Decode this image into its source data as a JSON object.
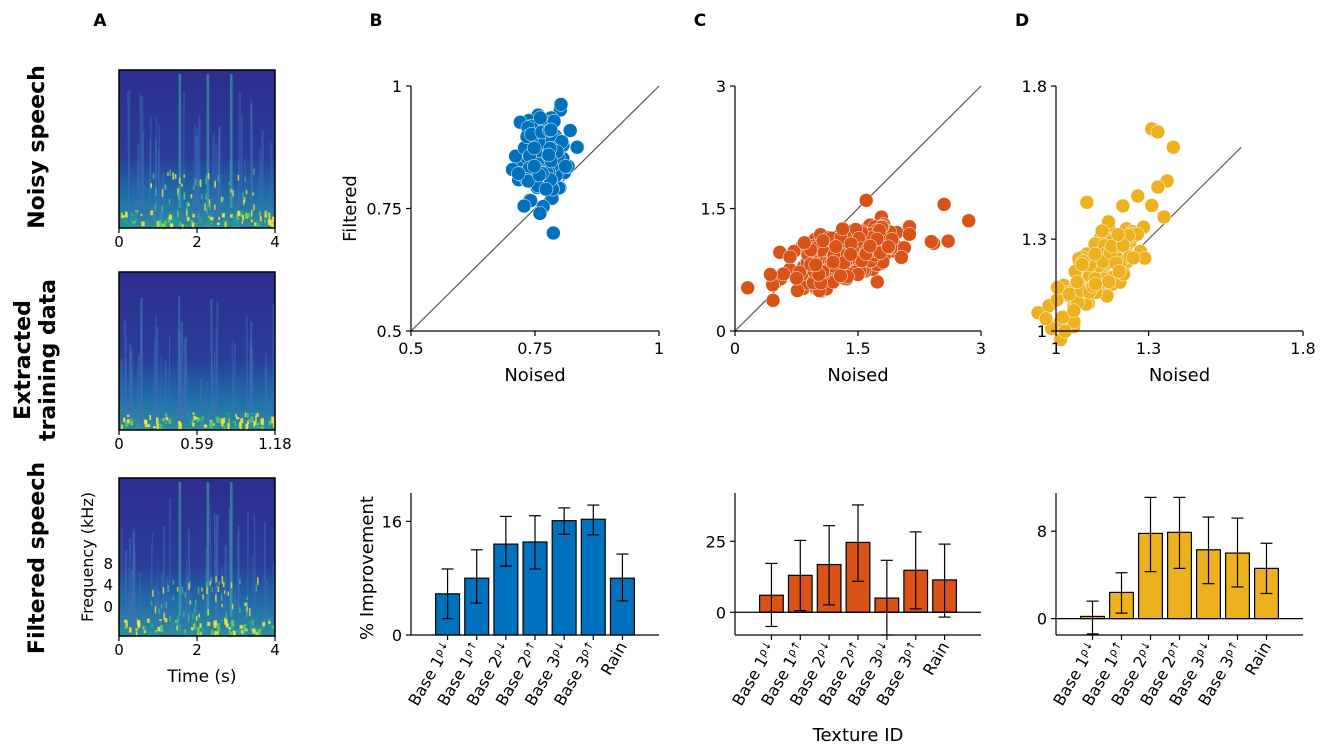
{
  "panel_labels": [
    "A",
    "B",
    "C",
    "D"
  ],
  "row_labels": {
    "noisy": "Noisy speech",
    "extracted_1": "Extracted",
    "extracted_2": "training data",
    "filtered": "Filtered speech"
  },
  "spectrograms": [
    {
      "id": "noisy",
      "xticks": [
        "0",
        "2",
        "4"
      ],
      "yticks": [],
      "xlabel": "",
      "ylabel": ""
    },
    {
      "id": "extracted",
      "xticks": [
        "0",
        "0.59",
        "1.18"
      ],
      "yticks": [],
      "xlabel": "",
      "ylabel": ""
    },
    {
      "id": "filtered",
      "xticks": [
        "0",
        "2",
        "4"
      ],
      "yticks": [
        "8",
        "4",
        "0"
      ],
      "xlabel": "Time (s)",
      "ylabel": "Frequency (kHz)"
    }
  ],
  "colors": {
    "blue": "#0072bd",
    "orange": "#d95319",
    "yellow": "#edb120",
    "spec_bg": "#2c2e8e",
    "axis": "#000000",
    "diag": "#555555"
  },
  "chart_data": [
    {
      "panel": "B",
      "type": "scatter",
      "xlabel": "Noised",
      "ylabel": "Filtered",
      "xlim": [
        0.5,
        1
      ],
      "ylim": [
        0.5,
        1
      ],
      "xticks": [
        "0.5",
        "0.75",
        "1"
      ],
      "yticks": [
        "0.5",
        "0.75",
        "1"
      ],
      "diagonal": true,
      "cloud": {
        "cx": 0.765,
        "cy": 0.86,
        "sx": 0.022,
        "sy": 0.04,
        "n": 170,
        "rho": 0.15
      },
      "outliers": [
        [
          0.728,
          0.755
        ],
        [
          0.76,
          0.74
        ],
        [
          0.787,
          0.7
        ],
        [
          0.835,
          0.875
        ]
      ]
    },
    {
      "panel": "C",
      "type": "scatter",
      "xlabel": "Noised",
      "ylabel": "",
      "xlim": [
        0,
        3
      ],
      "ylim": [
        0,
        3
      ],
      "xticks": [
        "0",
        "1.5",
        "3"
      ],
      "yticks": [
        "0",
        "1.5",
        "3"
      ],
      "diagonal": true,
      "cloud": {
        "cx": 1.35,
        "cy": 0.92,
        "sx": 0.35,
        "sy": 0.2,
        "n": 300,
        "rho": 0.55
      },
      "outliers": [
        [
          2.55,
          1.55
        ],
        [
          2.85,
          1.35
        ],
        [
          1.6,
          1.6
        ],
        [
          2.6,
          1.1
        ]
      ]
    },
    {
      "panel": "D",
      "type": "scatter",
      "xlabel": "Noised",
      "ylabel": "",
      "xlim": [
        1,
        1.8
      ],
      "ylim": [
        1,
        1.8
      ],
      "xticks": [
        "1",
        "1.3",
        "1.8"
      ],
      "yticks": [
        "1",
        "1.3",
        "1.8"
      ],
      "diagonal": true,
      "diag_end": 1.6,
      "cloud": {
        "cx": 1.14,
        "cy": 1.21,
        "sx": 0.07,
        "sy": 0.09,
        "n": 190,
        "rho": 0.8
      },
      "outliers": [
        [
          1.31,
          1.66
        ],
        [
          1.33,
          1.65
        ],
        [
          1.38,
          1.6
        ],
        [
          1.36,
          1.49
        ],
        [
          1.33,
          1.47
        ],
        [
          1.31,
          1.41
        ],
        [
          1.1,
          1.42
        ]
      ]
    },
    {
      "panel": "B",
      "type": "bar",
      "color": "blue",
      "ylabel": "% Improvement",
      "ylim": [
        0,
        20
      ],
      "yticks": [
        0,
        16
      ],
      "categories": [
        "Base 1",
        "Base 1",
        "Base 2",
        "Base 2",
        "Base 3",
        "Base 3",
        "Rain"
      ],
      "rho_marks": [
        "ρ↓",
        "ρ↑",
        "ρ↓",
        "ρ↑",
        "ρ↓",
        "ρ↑",
        ""
      ],
      "values": [
        5.8,
        8.0,
        12.8,
        13.1,
        16.1,
        16.3,
        8.0
      ],
      "err_low": [
        2.3,
        4.5,
        9.7,
        9.3,
        14.2,
        14.1,
        4.8
      ],
      "err_high": [
        9.3,
        12.0,
        16.7,
        16.8,
        17.9,
        18.3,
        11.4
      ],
      "xlabel": ""
    },
    {
      "panel": "C",
      "type": "bar",
      "color": "orange",
      "ylabel": "",
      "ylim": [
        -8,
        42
      ],
      "yticks": [
        0,
        25
      ],
      "categories": [
        "Base 1",
        "Base 1",
        "Base 2",
        "Base 2",
        "Base 3",
        "Base 3",
        "Rain"
      ],
      "rho_marks": [
        "ρ↓",
        "ρ↑",
        "ρ↓",
        "ρ↑",
        "ρ↓",
        "ρ↑",
        ""
      ],
      "values": [
        6.0,
        13.0,
        16.8,
        24.6,
        5.0,
        14.8,
        11.4
      ],
      "err_low": [
        -5.0,
        0.6,
        2.6,
        10.9,
        -8.0,
        1.2,
        -1.7
      ],
      "err_high": [
        17.2,
        25.3,
        30.5,
        37.8,
        18.3,
        28.3,
        24.0
      ],
      "xlabel": "Texture ID"
    },
    {
      "panel": "D",
      "type": "bar",
      "color": "yellow",
      "ylabel": "",
      "ylim": [
        -1.5,
        11.5
      ],
      "yticks": [
        0,
        8
      ],
      "categories": [
        "Base 1",
        "Base 1",
        "Base 2",
        "Base 2",
        "Base 3",
        "Base 3",
        "Rain"
      ],
      "rho_marks": [
        "ρ↓",
        "ρ↑",
        "ρ↓",
        "ρ↑",
        "ρ↓",
        "ρ↑",
        ""
      ],
      "values": [
        0.2,
        2.4,
        7.8,
        7.9,
        6.3,
        6.0,
        4.6
      ],
      "err_low": [
        -1.4,
        0.5,
        4.3,
        4.6,
        3.2,
        2.9,
        2.3
      ],
      "err_high": [
        1.6,
        4.2,
        11.1,
        11.1,
        9.3,
        9.2,
        6.9
      ],
      "xlabel": ""
    }
  ]
}
